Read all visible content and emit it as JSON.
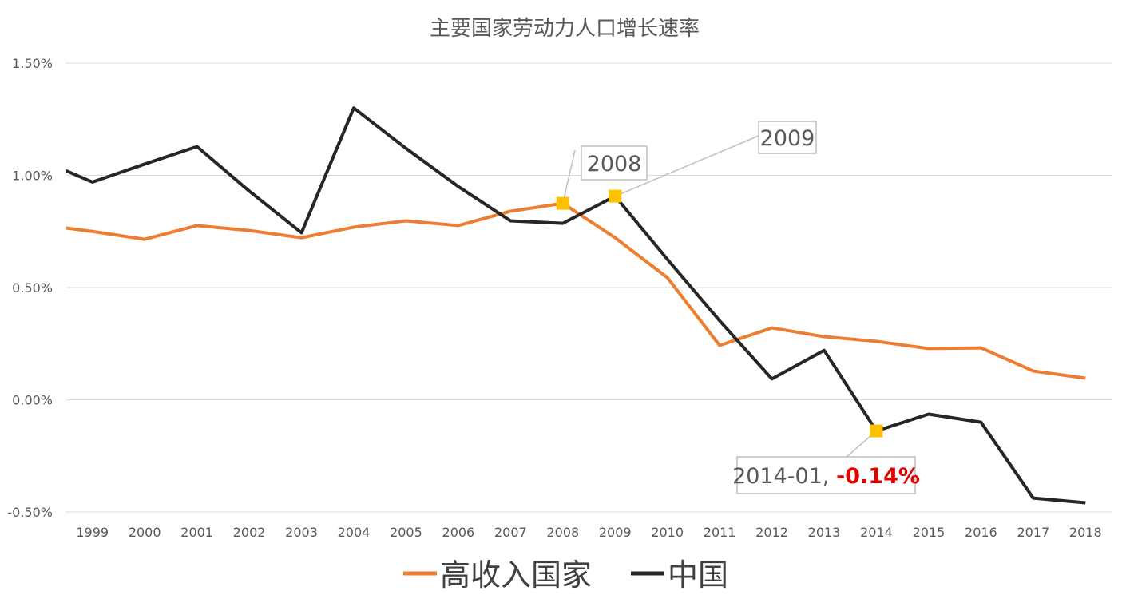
{
  "chart_data": {
    "type": "line",
    "title": "主要国家劳动力人口增长速率",
    "xlabel": "",
    "ylabel": "",
    "x": [
      1998,
      1999,
      2000,
      2001,
      2002,
      2003,
      2004,
      2005,
      2006,
      2007,
      2008,
      2009,
      2010,
      2011,
      2012,
      2013,
      2014,
      2015,
      2016,
      2017,
      2018
    ],
    "x_tick_labels": [
      "1999",
      "2000",
      "2001",
      "2002",
      "2003",
      "2004",
      "2005",
      "2006",
      "2007",
      "2008",
      "2009",
      "2010",
      "2011",
      "2012",
      "2013",
      "2014",
      "2015",
      "2016",
      "2017",
      "2018"
    ],
    "xlim": [
      1998.5,
      2018.5
    ],
    "ylim": [
      -0.5,
      1.5
    ],
    "y_tick_values": [
      -0.5,
      0,
      0.5,
      1.0,
      1.5
    ],
    "y_tick_labels": [
      "-0.50%",
      "0.00%",
      "0.50%",
      "1.00%",
      "1.50%"
    ],
    "grid": "horizontal",
    "legend_position": "bottom",
    "series": [
      {
        "name": "高收入国家",
        "color": "#ED7D31",
        "values": [
          0.78,
          0.75,
          0.715,
          0.776,
          0.754,
          0.722,
          0.769,
          0.797,
          0.776,
          0.84,
          0.875,
          0.722,
          0.544,
          0.242,
          0.32,
          0.281,
          0.26,
          0.228,
          0.231,
          0.128,
          0.096
        ]
      },
      {
        "name": "中国",
        "color": "#262626",
        "values": [
          1.07,
          0.97,
          1.05,
          1.128,
          0.93,
          0.744,
          1.3,
          1.12,
          0.95,
          0.797,
          0.786,
          0.907,
          0.626,
          0.352,
          0.093,
          0.22,
          -0.139,
          -0.064,
          -0.1,
          -0.438,
          -0.459
        ]
      }
    ],
    "annotations": [
      {
        "series": 0,
        "x": 2008,
        "label": "2008",
        "marker_color": "#FFC000"
      },
      {
        "series": 1,
        "x": 2009,
        "label": "2009",
        "marker_color": "#FFC000"
      },
      {
        "series": 1,
        "x": 2014,
        "label": "2014-01, ",
        "value_label": "-0.14%",
        "value_color": "#E00000",
        "marker_color": "#FFC000"
      }
    ]
  }
}
